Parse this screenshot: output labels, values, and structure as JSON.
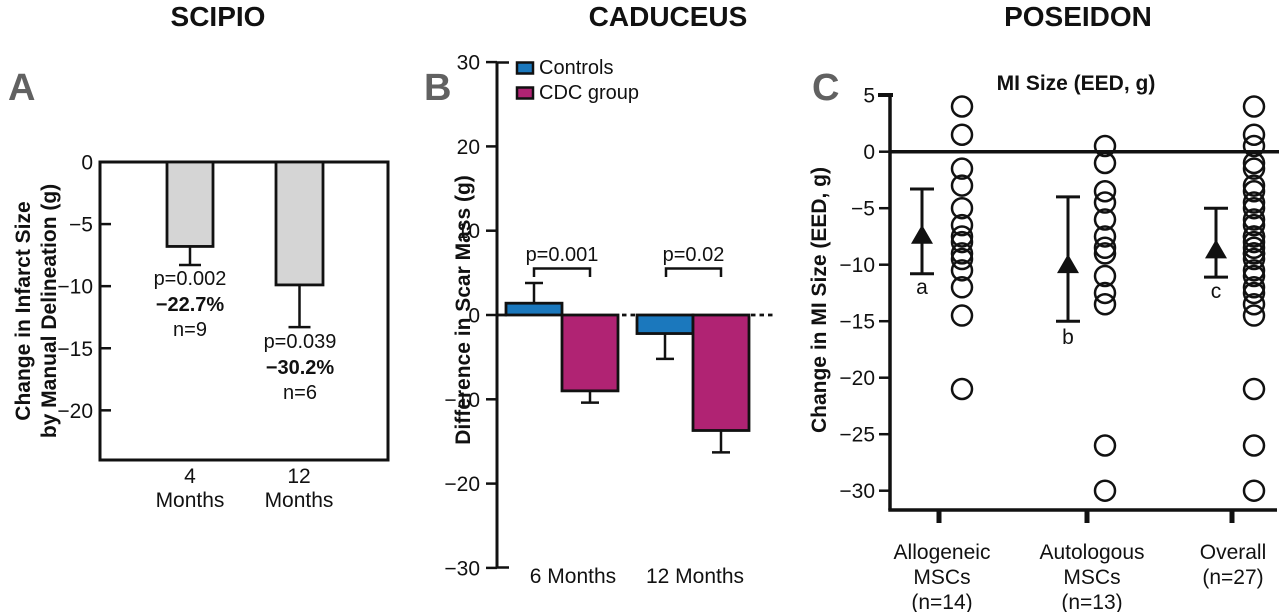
{
  "colors": {
    "axis_black": "#111111",
    "panel_letter_gray": "#616161",
    "bar_gray": "#d5d5d5",
    "controls_blue": "#1b78bd",
    "cdc_magenta": "#b02373"
  },
  "chart_data": [
    {
      "type": "bar",
      "panel_letter": "A",
      "title": "SCIPIO",
      "ylabel_lines": [
        "Change in Infarct Size",
        "by Manual Delineation (g)"
      ],
      "categories": [
        [
          "4",
          "Months"
        ],
        [
          "12",
          "Months"
        ]
      ],
      "values": [
        -6.8,
        -9.9
      ],
      "errors": [
        1.5,
        3.4
      ],
      "yticks": [
        0,
        -5,
        -10,
        -15,
        -20
      ],
      "ylim": [
        0,
        -24
      ],
      "bar_color": "#d5d5d5",
      "annotations": [
        {
          "p": "p=0.002",
          "pct": "−22.7%",
          "n": "n=9"
        },
        {
          "p": "p=0.039",
          "pct": "−30.2%",
          "n": "n=6"
        }
      ]
    },
    {
      "type": "bar",
      "panel_letter": "B",
      "title": "CADUCEUS",
      "ylabel": "Difference in Scar Mass (g)",
      "categories": [
        "6 Months",
        "12 Months"
      ],
      "series": [
        {
          "name": "Controls",
          "color": "#1b78bd",
          "values": [
            1.4,
            -2.2
          ],
          "errors": [
            2.4,
            3.0
          ]
        },
        {
          "name": "CDC group",
          "color": "#b02373",
          "values": [
            -9.0,
            -13.7
          ],
          "errors": [
            1.4,
            2.6
          ]
        }
      ],
      "yticks": [
        30,
        20,
        10,
        0,
        -10,
        -20,
        -30
      ],
      "ylim": [
        30,
        -30
      ],
      "p_values": [
        "p=0.001",
        "p=0.02"
      ],
      "legend_position": "top-left",
      "baseline_dotted": true
    },
    {
      "type": "scatter",
      "panel_letter": "C",
      "title": "POSEIDON",
      "subtitle": "MI Size (EED, g)",
      "ylabel": "Change in MI Size (EED, g)",
      "yticks": [
        5,
        0,
        -5,
        -10,
        -15,
        -20,
        -25,
        -30
      ],
      "ylim": [
        5,
        -32
      ],
      "zero_line": true,
      "groups": [
        {
          "label_lines": [
            "Allogeneic",
            "MSCs",
            "(n=14)"
          ],
          "letter": "a",
          "mean": -7.3,
          "ci": [
            -3.3,
            -10.8
          ],
          "points": [
            4,
            1.5,
            -1.5,
            -3,
            -5,
            -6.5,
            -7.5,
            -8,
            -9,
            -9.5,
            -10.5,
            -12,
            -14.5,
            -21
          ]
        },
        {
          "label_lines": [
            "Autologous",
            "MSCs",
            "(n=13)"
          ],
          "letter": "b",
          "mean": -9.9,
          "ci": [
            -4,
            -15
          ],
          "points": [
            0.5,
            -1,
            -3.5,
            -4.5,
            -6,
            -7.5,
            -8.5,
            -9,
            -11,
            -12.5,
            -13.5,
            -26,
            -30
          ]
        },
        {
          "label_lines": [
            "Overall",
            "(n=27)"
          ],
          "letter": "c",
          "mean": -8.6,
          "ci": [
            -5,
            -11.1
          ],
          "points": [
            4,
            1.5,
            0.5,
            -1,
            -1.5,
            -3,
            -3.5,
            -4.5,
            -5,
            -6,
            -6.5,
            -7.5,
            -7.5,
            -8,
            -8.5,
            -9,
            -9,
            -9.5,
            -10.5,
            -11,
            -12,
            -12.5,
            -13.5,
            -14.5,
            -21,
            -26,
            -30
          ]
        }
      ]
    }
  ]
}
